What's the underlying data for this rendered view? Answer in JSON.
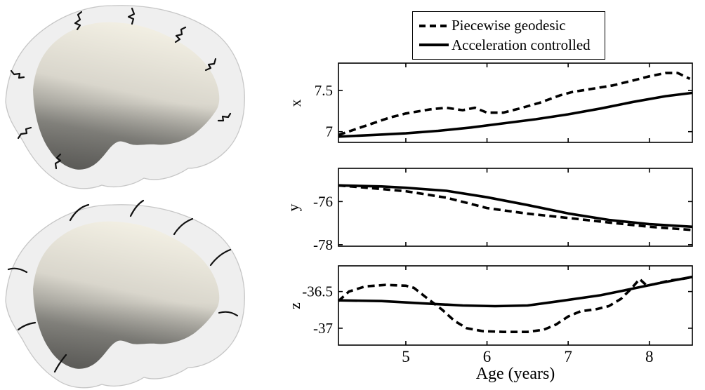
{
  "colors": {
    "line": "#000000",
    "background": "#ffffff",
    "brain_light": "#f3f0e4",
    "brain_mid": "#d9d6cc",
    "brain_shadow": "#8a8983",
    "brain_dark": "#6f6e69",
    "hull_fill": "#c9c9c9",
    "hull_stroke": "#9f9f9f"
  },
  "panels": {
    "top_brain": {
      "icon": "brain-3d-surface-jagged-streamlines-icon"
    },
    "bottom_brain": {
      "icon": "brain-3d-surface-smooth-streamlines-icon"
    }
  },
  "legend": {
    "items": [
      {
        "label": "Piecewise geodesic",
        "line_style": "dashed"
      },
      {
        "label": "Acceleration controlled",
        "line_style": "solid"
      }
    ]
  },
  "chart_data": [
    {
      "type": "line",
      "ylabel": "x",
      "xlim": [
        4.17,
        8.53
      ],
      "ylim": [
        6.87,
        7.83
      ],
      "xticks": [
        5,
        6,
        7,
        8
      ],
      "show_xtick_labels": false,
      "yticks": [
        7.5,
        7
      ],
      "ytick_labels": [
        "7.5",
        "7"
      ],
      "grid": false,
      "series": [
        {
          "name": "Piecewise geodesic",
          "style": "dashed",
          "x": [
            4.17,
            4.5,
            4.8,
            5.0,
            5.3,
            5.5,
            5.7,
            5.85,
            6.0,
            6.2,
            6.4,
            6.65,
            6.9,
            7.05,
            7.3,
            7.55,
            7.8,
            8.0,
            8.2,
            8.35,
            8.5
          ],
          "y": [
            6.96,
            7.07,
            7.17,
            7.22,
            7.27,
            7.29,
            7.26,
            7.29,
            7.23,
            7.23,
            7.28,
            7.35,
            7.44,
            7.48,
            7.52,
            7.56,
            7.62,
            7.67,
            7.71,
            7.71,
            7.64
          ]
        },
        {
          "name": "Acceleration controlled",
          "style": "solid",
          "x": [
            4.17,
            4.6,
            5.0,
            5.4,
            5.8,
            6.2,
            6.6,
            7.0,
            7.4,
            7.8,
            8.2,
            8.53
          ],
          "y": [
            6.94,
            6.96,
            6.98,
            7.01,
            7.05,
            7.1,
            7.15,
            7.21,
            7.28,
            7.36,
            7.43,
            7.47
          ]
        }
      ]
    },
    {
      "type": "line",
      "ylabel": "y",
      "xlim": [
        4.17,
        8.53
      ],
      "ylim": [
        -78.07,
        -74.46
      ],
      "xticks": [
        5,
        6,
        7,
        8
      ],
      "show_xtick_labels": false,
      "yticks": [
        -76,
        -78
      ],
      "ytick_labels": [
        "-76",
        "-78"
      ],
      "grid": false,
      "series": [
        {
          "name": "Piecewise geodesic",
          "style": "dashed",
          "x": [
            4.17,
            4.7,
            5.0,
            5.5,
            6.0,
            6.5,
            7.0,
            7.5,
            8.0,
            8.53
          ],
          "y": [
            -75.25,
            -75.42,
            -75.52,
            -75.82,
            -76.3,
            -76.56,
            -76.76,
            -76.97,
            -77.17,
            -77.32
          ]
        },
        {
          "name": "Acceleration controlled",
          "style": "solid",
          "x": [
            4.17,
            4.7,
            5.0,
            5.5,
            6.0,
            6.5,
            7.0,
            7.5,
            8.0,
            8.53
          ],
          "y": [
            -75.25,
            -75.3,
            -75.36,
            -75.5,
            -75.8,
            -76.16,
            -76.55,
            -76.85,
            -77.05,
            -77.17
          ]
        }
      ]
    },
    {
      "type": "line",
      "ylabel": "z",
      "xlabel": "Age (years)",
      "xlim": [
        4.17,
        8.53
      ],
      "ylim": [
        -37.23,
        -36.15
      ],
      "xticks": [
        5,
        6,
        7,
        8
      ],
      "show_xtick_labels": true,
      "xtick_labels": [
        "5",
        "6",
        "7",
        "8"
      ],
      "yticks": [
        -36.5,
        -37
      ],
      "ytick_labels": [
        "-36.5",
        "-37"
      ],
      "grid": false,
      "series": [
        {
          "name": "Piecewise geodesic",
          "style": "dashed",
          "x": [
            4.17,
            4.3,
            4.5,
            4.75,
            5.0,
            5.1,
            5.25,
            5.45,
            5.6,
            5.75,
            5.95,
            6.2,
            6.5,
            6.7,
            6.85,
            7.0,
            7.15,
            7.35,
            7.5,
            7.65,
            7.77,
            7.88,
            7.97,
            8.1,
            8.25,
            8.4,
            8.5
          ],
          "y": [
            -36.63,
            -36.5,
            -36.43,
            -36.41,
            -36.42,
            -36.45,
            -36.58,
            -36.75,
            -36.9,
            -37.0,
            -37.04,
            -37.05,
            -37.05,
            -37.02,
            -36.95,
            -36.84,
            -36.77,
            -36.74,
            -36.7,
            -36.6,
            -36.47,
            -36.33,
            -36.42,
            -36.39,
            -36.35,
            -36.33,
            -36.31
          ]
        },
        {
          "name": "Acceleration controlled",
          "style": "solid",
          "x": [
            4.17,
            4.7,
            5.2,
            5.7,
            6.1,
            6.5,
            6.9,
            7.4,
            7.8,
            8.1,
            8.53
          ],
          "y": [
            -36.62,
            -36.63,
            -36.66,
            -36.69,
            -36.7,
            -36.69,
            -36.63,
            -36.55,
            -36.46,
            -36.39,
            -36.3
          ]
        }
      ]
    }
  ]
}
